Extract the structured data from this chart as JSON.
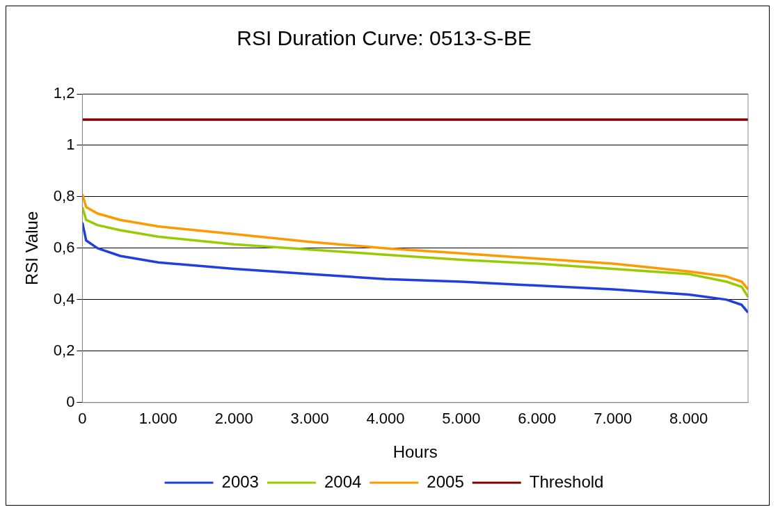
{
  "chart_data": {
    "type": "line",
    "title": "RSI Duration Curve: 0513-S-BE",
    "xlabel": "Hours",
    "ylabel": "RSI Value",
    "xlim": [
      0,
      8784
    ],
    "xticks": [
      0,
      {
        "value": 1000,
        "label": "1.000"
      },
      {
        "value": 2000,
        "label": "2.000"
      },
      {
        "value": 3000,
        "label": "3.000"
      },
      {
        "value": 4000,
        "label": "4.000"
      },
      {
        "value": 5000,
        "label": "5.000"
      },
      {
        "value": 6000,
        "label": "6.000"
      },
      {
        "value": 7000,
        "label": "7.000"
      },
      {
        "value": 8000,
        "label": "8.000"
      }
    ],
    "ylim": [
      0,
      1.2
    ],
    "yticks": [
      0,
      {
        "value": 0.2,
        "label": "0,2"
      },
      {
        "value": 0.4,
        "label": "0,4"
      },
      {
        "value": 0.6,
        "label": "0,6"
      },
      {
        "value": 0.8,
        "label": "0,8"
      },
      1,
      {
        "value": 1.2,
        "label": "1,2"
      }
    ],
    "grid": "y",
    "legend": "bottom",
    "marker": "none",
    "series": [
      {
        "name": "2003",
        "color": "#1f3fe0",
        "x": [
          0,
          50,
          200,
          500,
          1000,
          2000,
          3000,
          4000,
          5000,
          6000,
          7000,
          8000,
          8500,
          8700,
          8784
        ],
        "values": [
          0.7,
          0.63,
          0.6,
          0.57,
          0.545,
          0.52,
          0.5,
          0.48,
          0.47,
          0.455,
          0.44,
          0.42,
          0.4,
          0.38,
          0.35
        ]
      },
      {
        "name": "2004",
        "color": "#99cc00",
        "x": [
          0,
          50,
          200,
          500,
          1000,
          2000,
          3000,
          4000,
          5000,
          6000,
          7000,
          8000,
          8500,
          8700,
          8784
        ],
        "values": [
          0.76,
          0.71,
          0.69,
          0.67,
          0.645,
          0.615,
          0.595,
          0.575,
          0.555,
          0.54,
          0.52,
          0.5,
          0.47,
          0.45,
          0.41
        ]
      },
      {
        "name": "2005",
        "color": "#ff9900",
        "x": [
          0,
          50,
          200,
          500,
          1000,
          2000,
          3000,
          4000,
          5000,
          6000,
          7000,
          8000,
          8500,
          8700,
          8784
        ],
        "values": [
          0.81,
          0.76,
          0.735,
          0.71,
          0.685,
          0.655,
          0.625,
          0.6,
          0.58,
          0.56,
          0.54,
          0.51,
          0.49,
          0.47,
          0.44
        ]
      },
      {
        "name": "Threshold",
        "color": "#800000",
        "x": [
          0,
          8784
        ],
        "values": [
          1.1,
          1.1
        ]
      }
    ]
  }
}
